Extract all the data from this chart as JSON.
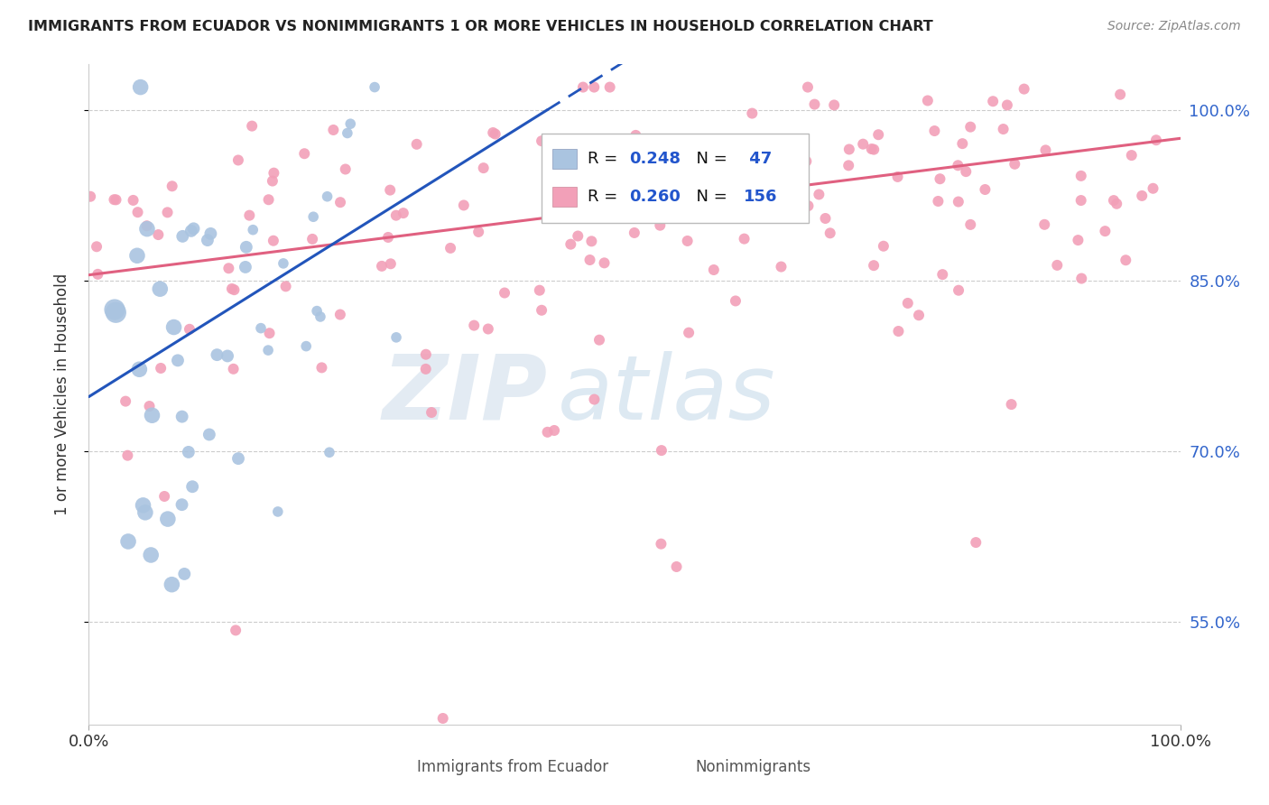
{
  "title": "IMMIGRANTS FROM ECUADOR VS NONIMMIGRANTS 1 OR MORE VEHICLES IN HOUSEHOLD CORRELATION CHART",
  "source": "Source: ZipAtlas.com",
  "ylabel": "1 or more Vehicles in Household",
  "xlim": [
    0.0,
    1.0
  ],
  "ylim": [
    0.46,
    1.04
  ],
  "yticks": [
    0.55,
    0.7,
    0.85,
    1.0
  ],
  "ytick_labels": [
    "55.0%",
    "70.0%",
    "85.0%",
    "100.0%"
  ],
  "xticks": [
    0.0,
    1.0
  ],
  "xtick_labels": [
    "0.0%",
    "100.0%"
  ],
  "blue_R": 0.248,
  "blue_N": 47,
  "pink_R": 0.26,
  "pink_N": 156,
  "blue_color": "#aac4e0",
  "pink_color": "#f2a0b8",
  "blue_line_color": "#2255bb",
  "pink_line_color": "#e06080",
  "legend_label_blue": "Immigrants from Ecuador",
  "legend_label_pink": "Nonimmigrants",
  "watermark_zip": "ZIP",
  "watermark_atlas": "atlas",
  "background_color": "#ffffff",
  "grid_color": "#cccccc",
  "blue_trend_x0": 0.0,
  "blue_trend_y0": 0.748,
  "blue_trend_x1": 0.42,
  "blue_trend_y1": 1.0,
  "blue_trend_ext_x1": 0.7,
  "blue_trend_ext_y1": 1.005,
  "pink_trend_x0": 0.0,
  "pink_trend_y0": 0.855,
  "pink_trend_x1": 1.0,
  "pink_trend_y1": 0.975
}
